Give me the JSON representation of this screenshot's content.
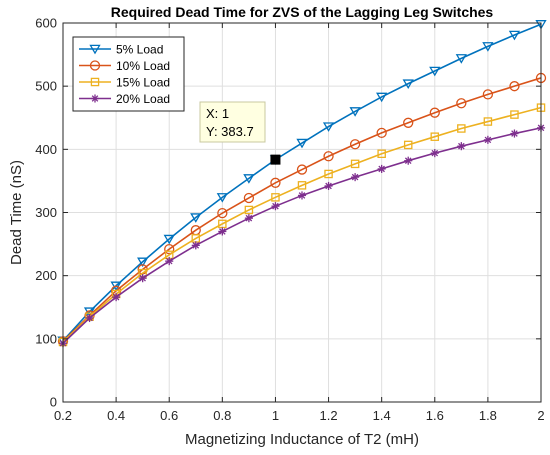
{
  "chart_data": {
    "type": "line",
    "title": "Required Dead Time for ZVS of the Lagging Leg Switches",
    "xlabel": "Magnetizing Inductance of T2 (mH)",
    "ylabel": "Dead Time (nS)",
    "xlim": [
      0.2,
      2
    ],
    "ylim": [
      0,
      600
    ],
    "xticks": [
      "0.2",
      "0.4",
      "0.6",
      "0.8",
      "1",
      "1.2",
      "1.4",
      "1.6",
      "1.8",
      "2"
    ],
    "yticks": [
      "0",
      "100",
      "200",
      "300",
      "400",
      "500",
      "600"
    ],
    "grid": true,
    "legend_position": "top-left",
    "x": [
      0.2,
      0.3,
      0.4,
      0.5,
      0.6,
      0.7,
      0.8,
      0.9,
      1.0,
      1.1,
      1.2,
      1.3,
      1.4,
      1.5,
      1.6,
      1.7,
      1.8,
      1.9,
      2.0
    ],
    "series": [
      {
        "name": "5% Load",
        "color": "#0072bd",
        "marker": "triangle-down",
        "values": [
          97,
          143,
          184,
          222,
          258,
          292,
          324,
          354,
          383.7,
          410,
          436,
          460,
          483,
          504,
          524,
          544,
          563,
          581,
          598
        ]
      },
      {
        "name": "10% Load",
        "color": "#d95319",
        "marker": "circle",
        "values": [
          96,
          137,
          176,
          210,
          242,
          272,
          299,
          323,
          347,
          368,
          389,
          408,
          426,
          442,
          458,
          473,
          487,
          500,
          513
        ]
      },
      {
        "name": "15% Load",
        "color": "#edb120",
        "marker": "square",
        "values": [
          95,
          135,
          171,
          204,
          233,
          259,
          282,
          304,
          324,
          343,
          361,
          377,
          393,
          407,
          420,
          433,
          444,
          455,
          466
        ]
      },
      {
        "name": "20% Load",
        "color": "#7e2f8e",
        "marker": "asterisk",
        "values": [
          93,
          133,
          166,
          196,
          223,
          248,
          270,
          291,
          310,
          327,
          342,
          356,
          369,
          382,
          394,
          405,
          415,
          425,
          434
        ]
      }
    ],
    "datatip": {
      "x": 1,
      "y": 383.7,
      "x_text": "X: 1",
      "y_text": "Y: 383.7"
    }
  }
}
